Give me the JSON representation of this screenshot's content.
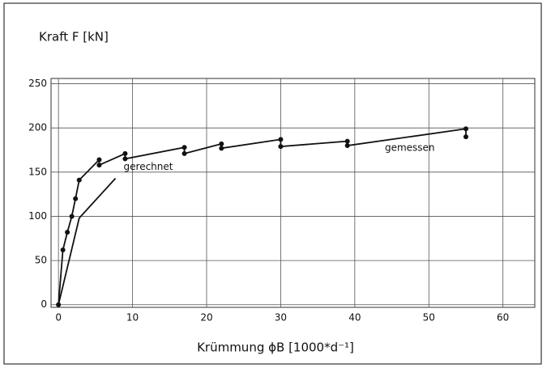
{
  "chart_data": {
    "type": "line",
    "y_label": "Kraft F [kN]",
    "x_label": "Krümmung ϕB [1000*d⁻¹]",
    "xlim": [
      -1,
      64.3
    ],
    "ylim": [
      -3,
      256
    ],
    "xticks": [
      0,
      10,
      20,
      30,
      40,
      50,
      60
    ],
    "yticks": [
      0,
      50,
      100,
      150,
      200,
      250
    ],
    "grid": true,
    "series": [
      {
        "name": "gemessen",
        "color": "#111111",
        "markers": true,
        "x": [
          0,
          0.6,
          1.2,
          1.8,
          2.3,
          2.8,
          5.5,
          5.5,
          9,
          9,
          17,
          17,
          22,
          22,
          30,
          30,
          39,
          39,
          55,
          55
        ],
        "values": [
          0,
          62,
          82,
          100,
          120,
          141,
          164,
          158,
          171,
          165,
          178,
          171,
          182,
          177,
          187,
          179,
          185,
          180,
          199,
          190
        ]
      },
      {
        "name": "gerechnet",
        "color": "#111111",
        "markers": false,
        "x": [
          0,
          2.8,
          7.7
        ],
        "values": [
          0,
          98,
          143
        ]
      }
    ]
  }
}
